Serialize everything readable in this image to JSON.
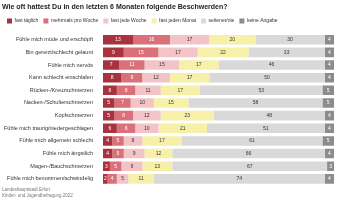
{
  "chart_data": {
    "type": "bar",
    "orientation": "horizontal",
    "stacked": true,
    "data_labels": true,
    "grid": false,
    "legend": "top-left",
    "tick_labels": "y",
    "title": "Wie oft hattest Du in den letzten 6 Monaten folgende Beschwerden?",
    "source": [
      "Landeshauptstadt Erfurt",
      "Kinder- und Jugendbefragung 2022"
    ],
    "xlim": [
      0,
      100
    ],
    "categories": [
      "Fühle mich müde und erschöpft",
      "Bin gereizt/schlecht gelaunt",
      "Fühle mich nervös",
      "Kann schlecht einschlafen",
      "Rücken-/Kreuzschmerzen",
      "Nacken-/Schulterschmerzen",
      "Kopfschmerzen",
      "Fühle mich traurig/niedergeschlagen",
      "Fühle mich allgemein schlecht",
      "Fühle mich ängstlich",
      "Magen-/Bauchschmerzen",
      "Fühle mich benommen/schwindelig"
    ],
    "series": [
      {
        "name": "fast täglich",
        "color": "#a8323e",
        "values": [
          13,
          9,
          7,
          8,
          6,
          5,
          5,
          6,
          4,
          4,
          3,
          2
        ]
      },
      {
        "name": "mehrmals pro Woche",
        "color": "#d9707a",
        "values": [
          16,
          15,
          11,
          9,
          8,
          7,
          8,
          8,
          5,
          5,
          5,
          4
        ]
      },
      {
        "name": "fast jede Woche",
        "color": "#f2c4c8",
        "values": [
          17,
          17,
          15,
          12,
          11,
          10,
          12,
          10,
          8,
          9,
          9,
          5
        ]
      },
      {
        "name": "fast jeden Monat",
        "color": "#f7f0a8",
        "values": [
          20,
          22,
          17,
          17,
          17,
          15,
          23,
          21,
          17,
          12,
          13,
          11
        ]
      },
      {
        "name": "seltener/nie",
        "color": "#d9d9d9",
        "values": [
          30,
          33,
          46,
          50,
          53,
          58,
          48,
          51,
          61,
          66,
          67,
          74
        ]
      },
      {
        "name": "keine Angabe",
        "color": "#8c8c8c",
        "values": [
          4,
          4,
          4,
          4,
          5,
          5,
          4,
          4,
          5,
          4,
          3,
          4
        ]
      }
    ]
  }
}
